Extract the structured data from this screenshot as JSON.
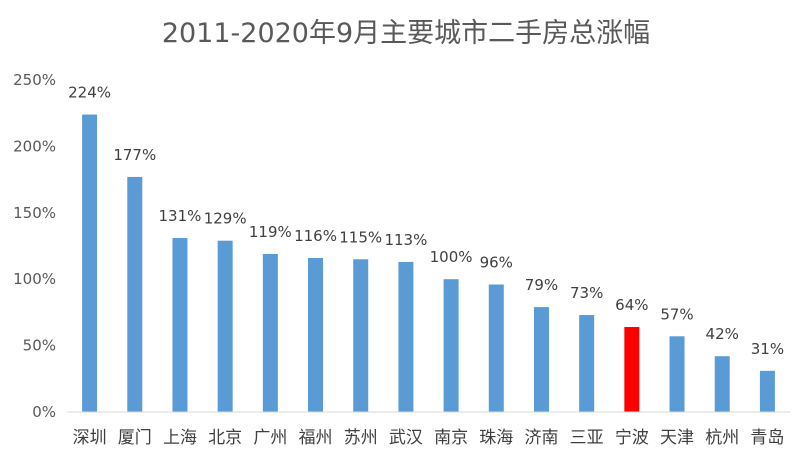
{
  "chart_data": {
    "type": "bar",
    "title": "2011-2020年9月主要城市二手房总涨幅",
    "categories": [
      "深圳",
      "厦门",
      "上海",
      "北京",
      "广州",
      "福州",
      "苏州",
      "武汉",
      "南京",
      "珠海",
      "济南",
      "三亚",
      "宁波",
      "天津",
      "杭州",
      "青岛"
    ],
    "values": [
      224,
      177,
      131,
      129,
      119,
      116,
      115,
      113,
      100,
      96,
      79,
      73,
      64,
      57,
      42,
      31
    ],
    "data_labels": [
      "224%",
      "177%",
      "131%",
      "129%",
      "119%",
      "116%",
      "115%",
      "113%",
      "100%",
      "96%",
      "79%",
      "73%",
      "64%",
      "57%",
      "42%",
      "31%"
    ],
    "value_unit": "%",
    "ylim": [
      0,
      250
    ],
    "yticks": [
      0,
      50,
      100,
      150,
      200,
      250
    ],
    "ytick_labels": [
      "0%",
      "50%",
      "100%",
      "150%",
      "200%",
      "250%"
    ],
    "xlabel": "",
    "ylabel": "",
    "grid": false,
    "legend": "none",
    "colors": {
      "bar": "#5b9bd5",
      "highlight": "#ff0000",
      "highlight_category": "宁波",
      "axis": "#d9d9d9",
      "text": "#595959"
    }
  }
}
